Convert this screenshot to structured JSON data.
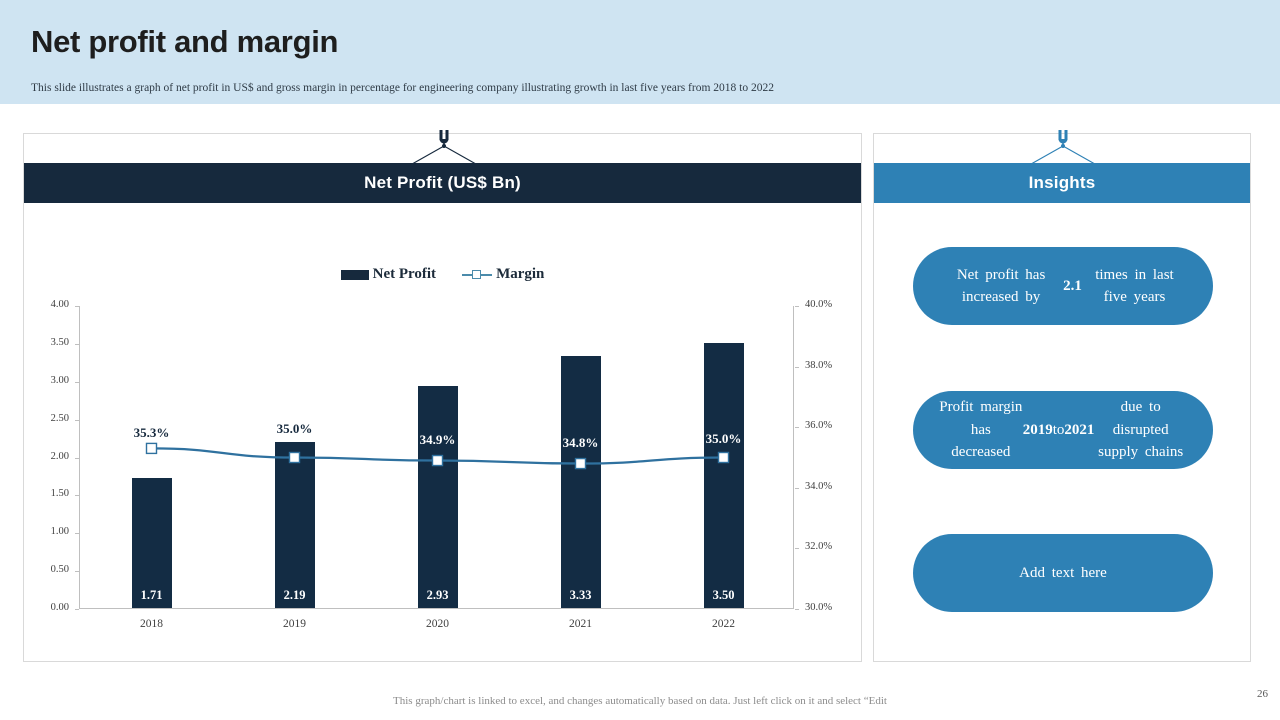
{
  "slide": {
    "title": "Net profit and margin",
    "subtitle": "This slide illustrates a graph of net profit in US$ and gross margin in percentage for engineering company illustrating growth in last five years from 2018 to 2022",
    "footer": "This graph/chart is linked to excel,  and changes  automatically based on data. Just left click on it and select “Edit",
    "page_number": "26"
  },
  "chart_panel": {
    "header": "Net Profit (US$ Bn)",
    "legend": [
      {
        "label": "Net Profit",
        "swatch": "bar-swatch"
      },
      {
        "label": "Margin",
        "swatch": "line-marker-swatch"
      }
    ]
  },
  "chart_data": {
    "type": "bar+line combo",
    "categories": [
      "2018",
      "2019",
      "2020",
      "2021",
      "2022"
    ],
    "series": [
      {
        "name": "Net Profit",
        "type": "bar",
        "axis": "left",
        "values": [
          1.71,
          2.19,
          2.93,
          3.33,
          3.5
        ],
        "labels": [
          "1.71",
          "2.19",
          "2.93",
          "3.33",
          "3.50"
        ]
      },
      {
        "name": "Margin",
        "type": "line",
        "axis": "right",
        "values": [
          35.3,
          35.0,
          34.9,
          34.8,
          35.0
        ],
        "labels": [
          "35.3%",
          "35.0%",
          "34.9%",
          "34.8%",
          "35.0%"
        ]
      }
    ],
    "left_axis": {
      "min": 0,
      "max": 4,
      "ticks": [
        "0.00",
        "0.50",
        "1.00",
        "1.50",
        "2.00",
        "2.50",
        "3.00",
        "3.50",
        "4.00"
      ]
    },
    "right_axis": {
      "min": 30,
      "max": 40,
      "ticks": [
        "30.0%",
        "32.0%",
        "34.0%",
        "36.0%",
        "38.0%",
        "40.0%"
      ]
    },
    "grid": "off",
    "legend_position": "top-center"
  },
  "insights_panel": {
    "header": "Insights",
    "items": [
      {
        "segments": [
          {
            "text": "Net profit  has increased  by "
          },
          {
            "text": "2.1",
            "bold": true
          },
          {
            "text": " times  in last  five  years"
          }
        ]
      },
      {
        "segments": [
          {
            "text": "Profit  margin  has decreased "
          },
          {
            "text": "2019",
            "bold": true
          },
          {
            "text": " to "
          },
          {
            "text": "2021",
            "bold": true
          },
          {
            "text": " due to  disrupted  supply  chains"
          }
        ]
      },
      {
        "segments": [
          {
            "text": "Add text  here"
          }
        ]
      }
    ]
  },
  "colors": {
    "navy": "#16293d",
    "bar": "#132c44",
    "blue": "#2e81b5",
    "band": "#cfe4f2",
    "line": "#2f719f",
    "legend_line": "#4b8bab",
    "axis_text": "#3f3f3f",
    "border": "#d9d9d9",
    "footer_text": "#8c8c8c"
  }
}
